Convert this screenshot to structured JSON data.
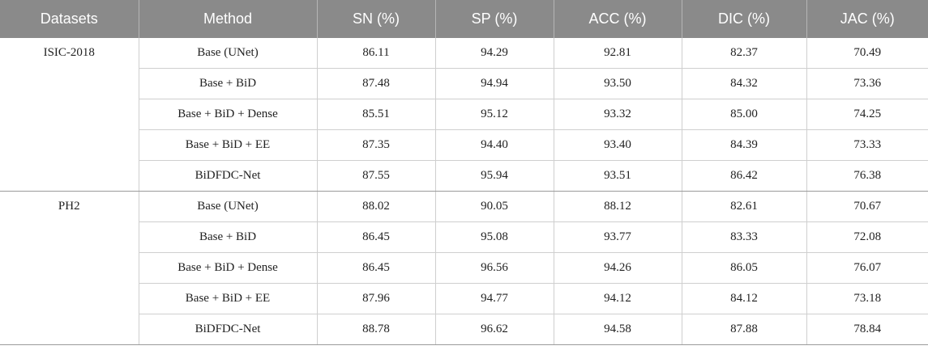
{
  "table": {
    "headers": [
      "Datasets",
      "Method",
      "SN (%)",
      "SP (%)",
      "ACC (%)",
      "DIC (%)",
      "JAC (%)"
    ],
    "groups": [
      {
        "dataset": "ISIC-2018",
        "rows": [
          {
            "method": "Base (UNet)",
            "sn": "86.11",
            "sp": "94.29",
            "acc": "92.81",
            "dic": "82.37",
            "jac": "70.49"
          },
          {
            "method": "Base + BiD",
            "sn": "87.48",
            "sp": "94.94",
            "acc": "93.50",
            "dic": "84.32",
            "jac": "73.36"
          },
          {
            "method": "Base + BiD + Dense",
            "sn": "85.51",
            "sp": "95.12",
            "acc": "93.32",
            "dic": "85.00",
            "jac": "74.25"
          },
          {
            "method": "Base + BiD + EE",
            "sn": "87.35",
            "sp": "94.40",
            "acc": "93.40",
            "dic": "84.39",
            "jac": "73.33"
          },
          {
            "method": "BiDFDC-Net",
            "sn": "87.55",
            "sp": "95.94",
            "acc": "93.51",
            "dic": "86.42",
            "jac": "76.38"
          }
        ]
      },
      {
        "dataset": "PH2",
        "rows": [
          {
            "method": "Base (UNet)",
            "sn": "88.02",
            "sp": "90.05",
            "acc": "88.12",
            "dic": "82.61",
            "jac": "70.67"
          },
          {
            "method": "Base + BiD",
            "sn": "86.45",
            "sp": "95.08",
            "acc": "93.77",
            "dic": "83.33",
            "jac": "72.08"
          },
          {
            "method": "Base + BiD + Dense",
            "sn": "86.45",
            "sp": "96.56",
            "acc": "94.26",
            "dic": "86.05",
            "jac": "76.07"
          },
          {
            "method": "Base + BiD + EE",
            "sn": "87.96",
            "sp": "94.77",
            "acc": "94.12",
            "dic": "84.12",
            "jac": "73.18"
          },
          {
            "method": "BiDFDC-Net",
            "sn": "88.78",
            "sp": "96.62",
            "acc": "94.58",
            "dic": "87.88",
            "jac": "78.84"
          }
        ]
      }
    ]
  }
}
